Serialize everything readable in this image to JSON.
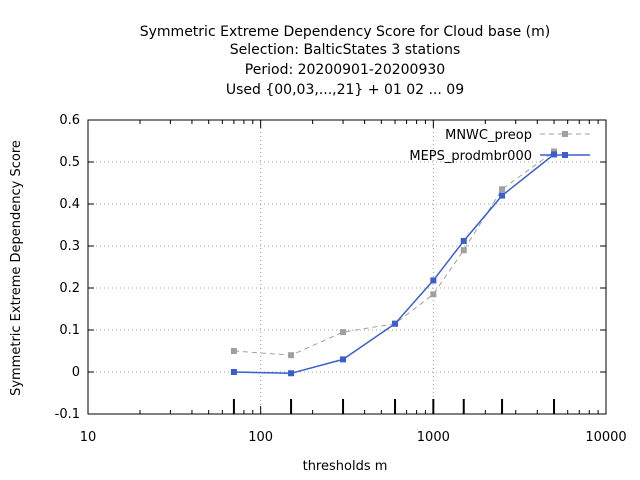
{
  "chart_data": {
    "type": "line",
    "title": [
      "Symmetric Extreme Dependency Score  for Cloud base (m)",
      "Selection: BalticStates      3 stations",
      "Period: 20200901-20200930",
      "Used {00,03,...,21} + 01 02 ... 09"
    ],
    "xlabel": "thresholds m",
    "ylabel": "Symmetric Extreme Dependency Score",
    "xscale": "log",
    "xlim": [
      10,
      10000
    ],
    "ylim": [
      -0.1,
      0.6
    ],
    "xticks": [
      10,
      100,
      1000,
      10000
    ],
    "xtick_labels": [
      "10",
      "100",
      "1000",
      "10000"
    ],
    "yticks": [
      -0.1,
      0,
      0.1,
      0.2,
      0.3,
      0.4,
      0.5,
      0.6
    ],
    "ytick_labels": [
      "-0.1",
      "0",
      "0.1",
      "0.2",
      "0.3",
      "0.4",
      "0.5",
      "0.6"
    ],
    "grid": true,
    "legend_position": "top-right",
    "threshold_markers": [
      70,
      150,
      300,
      600,
      1000,
      1500,
      2500,
      5000
    ],
    "series": [
      {
        "name": "MNWC_preop",
        "color": "#a0a0a0",
        "style": "dashed",
        "x": [
          70,
          150,
          300,
          600,
          1000,
          1500,
          2500,
          5000
        ],
        "y": [
          0.05,
          0.04,
          0.095,
          0.115,
          0.185,
          0.29,
          0.435,
          0.525
        ]
      },
      {
        "name": "MEPS_prodmbr000",
        "color": "#3a5fcd",
        "style": "solid",
        "x": [
          70,
          150,
          300,
          600,
          1000,
          1500,
          2500,
          5000
        ],
        "y": [
          0.0,
          -0.003,
          0.03,
          0.115,
          0.218,
          0.312,
          0.42,
          0.518
        ]
      }
    ]
  }
}
